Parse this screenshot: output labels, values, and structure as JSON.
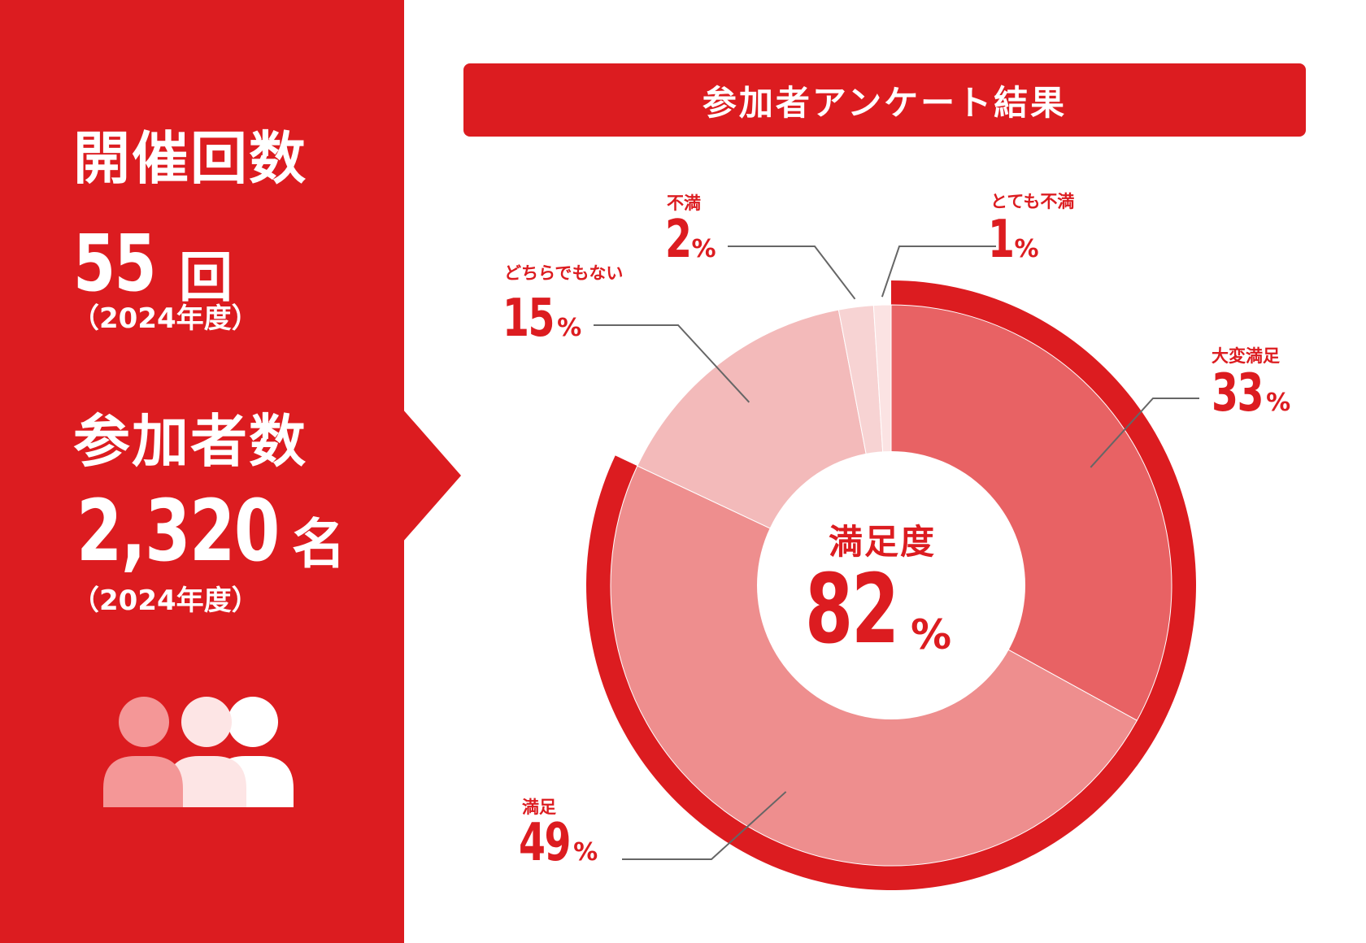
{
  "stats": {
    "sessions": {
      "title": "開催回数",
      "value": "55",
      "unit": "回",
      "year": "（2024年度）"
    },
    "participants": {
      "title": "参加者数",
      "value": "2,320",
      "unit": "名",
      "year": "（2024年度）"
    }
  },
  "icons": {
    "people": "people-group-icon"
  },
  "colors": {
    "brand_red": "#dc1c20",
    "very_satisfied": "#e86264",
    "satisfied": "#ee8e8e",
    "neutral": "#f3baba",
    "dissatisfied": "#f7d3d3",
    "very_dissatisfied": "#fbe3e3",
    "leader": "#666666"
  },
  "chart_data": {
    "type": "pie",
    "title": "参加者アンケート結果",
    "center_label": "満足度",
    "center_value": "82",
    "center_unit": "%",
    "unit": "%",
    "slices": [
      {
        "label": "大変満足",
        "value": 33
      },
      {
        "label": "満足",
        "value": 49
      },
      {
        "label": "どちらでもない",
        "value": 15
      },
      {
        "label": "不満",
        "value": 2
      },
      {
        "label": "とても不満",
        "value": 1
      }
    ],
    "highlight": {
      "labels": [
        "大変満足",
        "満足"
      ],
      "value": 82
    }
  }
}
